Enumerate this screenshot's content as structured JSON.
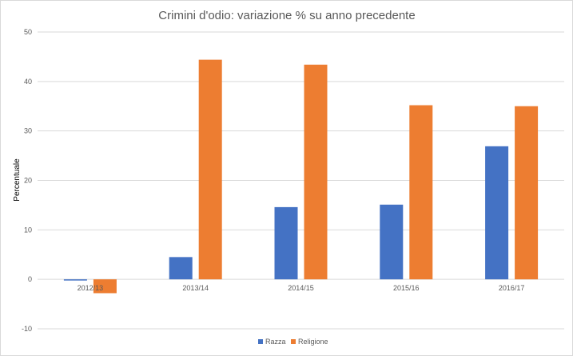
{
  "chart_data": {
    "type": "bar",
    "title": "Crimini d'odio: variazione % su anno precedente",
    "xlabel": "",
    "ylabel": "Percentuale",
    "categories": [
      "2012/13",
      "2013/14",
      "2014/15",
      "2015/16",
      "2016/17"
    ],
    "series": [
      {
        "name": "Razza",
        "color": "#4472c4",
        "values": [
          -0.2,
          4.5,
          14.6,
          15.1,
          26.9
        ]
      },
      {
        "name": "Religione",
        "color": "#ed7d31",
        "values": [
          -2.8,
          44.4,
          43.4,
          35.2,
          35.0
        ]
      }
    ],
    "ylim": [
      -10,
      50
    ],
    "yticks": [
      "-10",
      "0",
      "10",
      "20",
      "30",
      "40",
      "50"
    ],
    "grid": true,
    "legend": "bottom"
  }
}
